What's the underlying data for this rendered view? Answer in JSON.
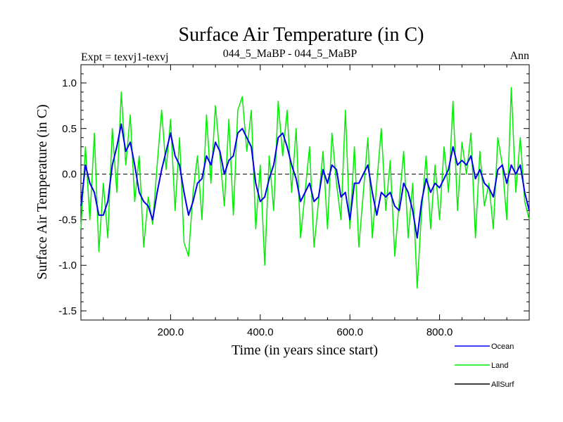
{
  "chart_data": {
    "type": "line",
    "title": "Surface Air Temperature (in C)",
    "subtitle_left": "Expt = texvj1-texvj",
    "subtitle_center": "044_5_MaBP - 044_5_MaBP",
    "subtitle_right": "Ann",
    "xlabel": "Time (in years since start)",
    "ylabel": "Surface Air Temperature (in C)",
    "xlim": [
      0,
      1000
    ],
    "ylim": [
      -1.6,
      1.2
    ],
    "x_ticks": [
      200,
      400,
      600,
      800
    ],
    "x_tick_labels": [
      "200.0",
      "400.0",
      "600.0",
      "800.0"
    ],
    "y_ticks": [
      1.0,
      0.5,
      0.0,
      -0.5,
      -1.0,
      -1.5
    ],
    "y_tick_labels": [
      "1.0",
      "0.5",
      "0.0",
      "-0.5",
      "-1.0",
      "-1.5"
    ],
    "reference_line": 0.0,
    "legend_position": "bottom-right",
    "series": [
      {
        "name": "Land",
        "color": "#00ee00",
        "x": [
          0,
          10,
          20,
          30,
          40,
          50,
          60,
          70,
          80,
          90,
          100,
          110,
          120,
          130,
          140,
          150,
          160,
          170,
          180,
          190,
          200,
          210,
          220,
          230,
          240,
          250,
          260,
          270,
          280,
          290,
          300,
          310,
          320,
          330,
          340,
          350,
          360,
          370,
          380,
          390,
          400,
          410,
          420,
          430,
          440,
          450,
          460,
          470,
          480,
          490,
          500,
          510,
          520,
          530,
          540,
          550,
          560,
          570,
          580,
          590,
          600,
          610,
          620,
          630,
          640,
          650,
          660,
          670,
          680,
          690,
          700,
          710,
          720,
          730,
          740,
          750,
          760,
          770,
          780,
          790,
          800,
          810,
          820,
          830,
          840,
          850,
          860,
          870,
          880,
          890,
          900,
          910,
          920,
          930,
          940,
          950,
          960,
          970,
          980,
          990,
          1000
        ],
        "values": [
          -0.6,
          0.3,
          -0.5,
          0.45,
          -0.85,
          -0.1,
          -0.7,
          0.5,
          -0.2,
          0.9,
          0.1,
          0.65,
          -0.3,
          0.2,
          -0.8,
          -0.25,
          -0.55,
          0.1,
          0.7,
          0.05,
          0.6,
          -0.4,
          0.4,
          -0.75,
          -0.9,
          -0.2,
          0.2,
          -0.5,
          0.65,
          -0.1,
          0.75,
          0.2,
          -0.35,
          0.6,
          -0.45,
          0.7,
          0.85,
          0.25,
          0.7,
          -0.6,
          0.1,
          -1.0,
          0.2,
          -0.4,
          0.8,
          0.2,
          0.7,
          -0.2,
          0.5,
          -0.7,
          -0.2,
          0.3,
          -0.8,
          -0.3,
          0.25,
          -0.6,
          0.45,
          -0.1,
          -0.5,
          0.7,
          -0.6,
          0.3,
          -0.8,
          -0.2,
          0.4,
          -0.7,
          -0.1,
          0.5,
          -0.4,
          0.15,
          -0.9,
          -0.3,
          0.25,
          -0.7,
          -0.1,
          -1.25,
          -0.4,
          0.2,
          -0.6,
          0.1,
          -0.5,
          0.3,
          -0.2,
          0.8,
          -0.4,
          0.35,
          0.0,
          0.45,
          -0.7,
          0.25,
          -0.35,
          -0.1,
          -0.6,
          0.4,
          0.1,
          -0.5,
          0.95,
          -0.2,
          0.4,
          -0.3,
          -0.5
        ]
      },
      {
        "name": "Ocean",
        "color": "#0000ee",
        "x": [
          0,
          10,
          20,
          30,
          40,
          50,
          60,
          70,
          80,
          90,
          100,
          110,
          120,
          130,
          140,
          150,
          160,
          170,
          180,
          190,
          200,
          210,
          220,
          230,
          240,
          250,
          260,
          270,
          280,
          290,
          300,
          310,
          320,
          330,
          340,
          350,
          360,
          370,
          380,
          390,
          400,
          410,
          420,
          430,
          440,
          450,
          460,
          470,
          480,
          490,
          500,
          510,
          520,
          530,
          540,
          550,
          560,
          570,
          580,
          590,
          600,
          610,
          620,
          630,
          640,
          650,
          660,
          670,
          680,
          690,
          700,
          710,
          720,
          730,
          740,
          750,
          760,
          770,
          780,
          790,
          800,
          810,
          820,
          830,
          840,
          850,
          860,
          870,
          880,
          890,
          900,
          910,
          920,
          930,
          940,
          950,
          960,
          970,
          980,
          990,
          1000
        ],
        "values": [
          -0.35,
          0.1,
          -0.1,
          -0.2,
          -0.45,
          -0.45,
          -0.3,
          0.1,
          0.3,
          0.55,
          0.25,
          0.35,
          0.1,
          -0.2,
          -0.3,
          -0.35,
          -0.5,
          -0.2,
          0.05,
          0.25,
          0.45,
          0.2,
          0.1,
          -0.2,
          -0.45,
          -0.3,
          -0.1,
          -0.05,
          0.2,
          0.1,
          0.35,
          0.25,
          0.0,
          0.15,
          0.2,
          0.45,
          0.5,
          0.4,
          0.3,
          -0.1,
          -0.3,
          -0.25,
          -0.05,
          0.1,
          0.4,
          0.45,
          0.3,
          0.1,
          -0.05,
          -0.3,
          -0.2,
          -0.1,
          -0.3,
          -0.25,
          0.05,
          -0.1,
          0.1,
          0.05,
          -0.25,
          -0.2,
          -0.5,
          -0.1,
          -0.1,
          0.0,
          0.1,
          -0.2,
          -0.45,
          -0.2,
          -0.25,
          -0.2,
          -0.35,
          -0.4,
          -0.1,
          -0.2,
          -0.4,
          -0.7,
          -0.3,
          -0.05,
          -0.2,
          -0.1,
          -0.15,
          -0.05,
          0.05,
          0.3,
          0.1,
          0.15,
          0.1,
          0.2,
          -0.05,
          0.05,
          -0.1,
          -0.15,
          -0.25,
          0.05,
          0.1,
          -0.1,
          0.1,
          0.0,
          0.1,
          -0.2,
          -0.4
        ]
      },
      {
        "name": "AllSurf",
        "color": "#000000",
        "values": []
      }
    ]
  }
}
